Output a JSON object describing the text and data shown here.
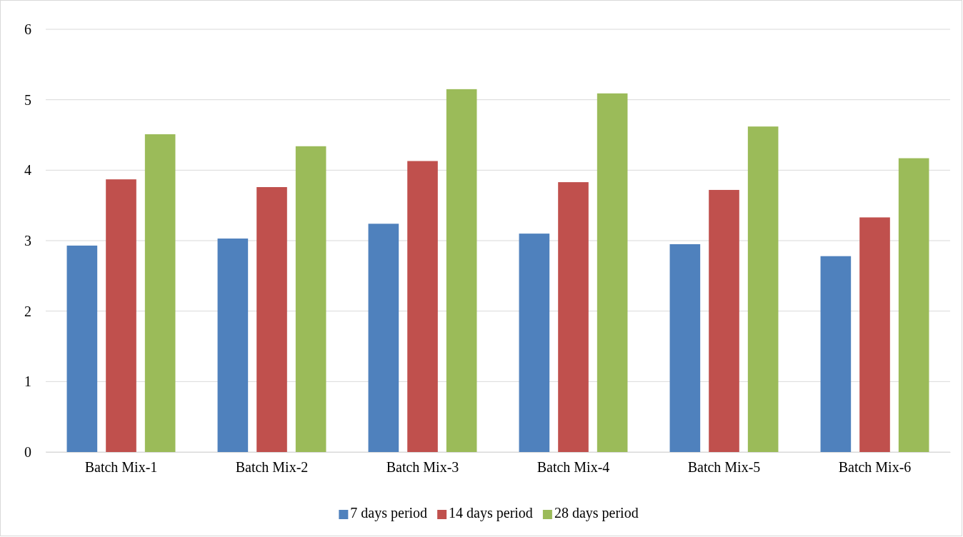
{
  "chart_data": {
    "type": "bar",
    "categories": [
      "Batch Mix-1",
      "Batch Mix-2",
      "Batch Mix-3",
      "Batch Mix-4",
      "Batch Mix-5",
      "Batch Mix-6"
    ],
    "series": [
      {
        "name": "7 days period",
        "color": "#4f81bd",
        "values": [
          2.93,
          3.03,
          3.24,
          3.1,
          2.95,
          2.78
        ]
      },
      {
        "name": "14 days period",
        "color": "#c0504d",
        "values": [
          3.87,
          3.76,
          4.13,
          3.83,
          3.72,
          3.33
        ]
      },
      {
        "name": "28 days period",
        "color": "#9bbb59",
        "values": [
          4.51,
          4.34,
          5.15,
          5.09,
          4.62,
          4.17
        ]
      }
    ],
    "ylim": [
      0,
      6
    ],
    "yticks": [
      0,
      1,
      2,
      3,
      4,
      5,
      6
    ],
    "grid": "y",
    "legend": "bottom"
  }
}
